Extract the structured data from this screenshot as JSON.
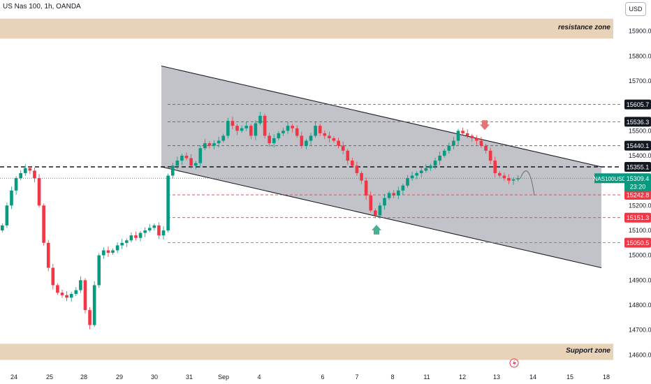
{
  "symbol_title": "US Nas 100, 1h, OANDA",
  "currency_button": "USD",
  "zones": {
    "resistance": {
      "label": "resistance zone",
      "from": 15870,
      "to": 15950,
      "color": "#e9d3b8"
    },
    "support": {
      "label": "Support zone",
      "from": 14580,
      "to": 14645,
      "color": "#e9d3b8"
    }
  },
  "chart_data": {
    "type": "candlestick",
    "y_axis": {
      "ylim": [
        14545,
        16025
      ],
      "ticks": [
        "15900.0",
        "15800.0",
        "15700.0",
        "15600.0",
        "15500.0",
        "15400.0",
        "15300.0",
        "15200.0",
        "15100.0",
        "15000.0",
        "14900.0",
        "14800.0",
        "14700.0",
        "14600.0"
      ],
      "tick_values": [
        15900,
        15800,
        15700,
        15600,
        15500,
        15400,
        15300,
        15200,
        15100,
        15000,
        14900,
        14800,
        14700,
        14600
      ]
    },
    "x_axis": {
      "labels": [
        "24",
        "25",
        "28",
        "29",
        "30",
        "31",
        "Sep",
        "4",
        "6",
        "7",
        "8",
        "11",
        "12",
        "13",
        "14",
        "15",
        "18"
      ]
    },
    "channel": {
      "upper": [
        {
          "x": "30",
          "y": 15760
        },
        {
          "x": "15",
          "y": 15355
        }
      ],
      "lower": [
        {
          "x": "30",
          "y": 15355
        },
        {
          "x": "15",
          "y": 14950
        }
      ]
    },
    "levels": [
      {
        "value": 15605.7,
        "label": "15605.7",
        "style": "dashed",
        "color": "#555555",
        "badge": "#131722"
      },
      {
        "value": 15536.3,
        "label": "15536.3",
        "style": "dashed",
        "color": "#555555",
        "badge": "#131722"
      },
      {
        "value": 15440.1,
        "label": "15440.1",
        "style": "dashed",
        "color": "#555555",
        "badge": "#131722"
      },
      {
        "value": 15355.1,
        "label": "15355.1",
        "style": "dashed-bold",
        "color": "#131722",
        "badge": "#131722"
      },
      {
        "value": 15242.8,
        "label": "15242.8",
        "style": "dashed",
        "color": "#f23645",
        "badge": "#f23645"
      },
      {
        "value": 15151.3,
        "label": "15151.3",
        "style": "dashed",
        "color": "#f23645",
        "badge": "#f23645"
      },
      {
        "value": 15050.5,
        "label": "15050.5",
        "style": "dashed",
        "color": "#f23645",
        "badge": "#f23645"
      }
    ],
    "last_price": {
      "symbol": "NAS100USD",
      "value": "15309.4",
      "countdown": "23:20",
      "color": "#089981"
    },
    "closes": [
      15120,
      15200,
      15260,
      15310,
      15330,
      15350,
      15340,
      15310,
      15200,
      15050,
      14950,
      14880,
      14850,
      14840,
      14830,
      14845,
      14860,
      14900,
      14780,
      14720,
      14880,
      15000,
      15020,
      15010,
      15020,
      15040,
      15050,
      15060,
      15080,
      15070,
      15090,
      15100,
      15110,
      15120,
      15080,
      15100,
      15320,
      15360,
      15380,
      15400,
      15390,
      15360,
      15370,
      15430,
      15450,
      15440,
      15450,
      15460,
      15480,
      15540,
      15520,
      15500,
      15510,
      15520,
      15480,
      15530,
      15560,
      15480,
      15450,
      15470,
      15490,
      15500,
      15520,
      15510,
      15480,
      15440,
      15460,
      15480,
      15520,
      15490,
      15480,
      15470,
      15460,
      15440,
      15420,
      15380,
      15360,
      15330,
      15300,
      15240,
      15180,
      15160,
      15200,
      15230,
      15250,
      15240,
      15260,
      15280,
      15310,
      15320,
      15330,
      15340,
      15350,
      15360,
      15380,
      15400,
      15420,
      15440,
      15460,
      15500,
      15490,
      15480,
      15470,
      15460,
      15440,
      15420,
      15380,
      15330,
      15320,
      15310,
      15300,
      15305,
      15309.4
    ],
    "arrows": [
      {
        "direction": "down",
        "color": "#e57373",
        "near_value": 15500
      },
      {
        "direction": "up",
        "color": "#4caf93",
        "near_value": 15120
      }
    ],
    "grid": false,
    "bull_color": "#089981",
    "bear_color": "#f23645"
  }
}
